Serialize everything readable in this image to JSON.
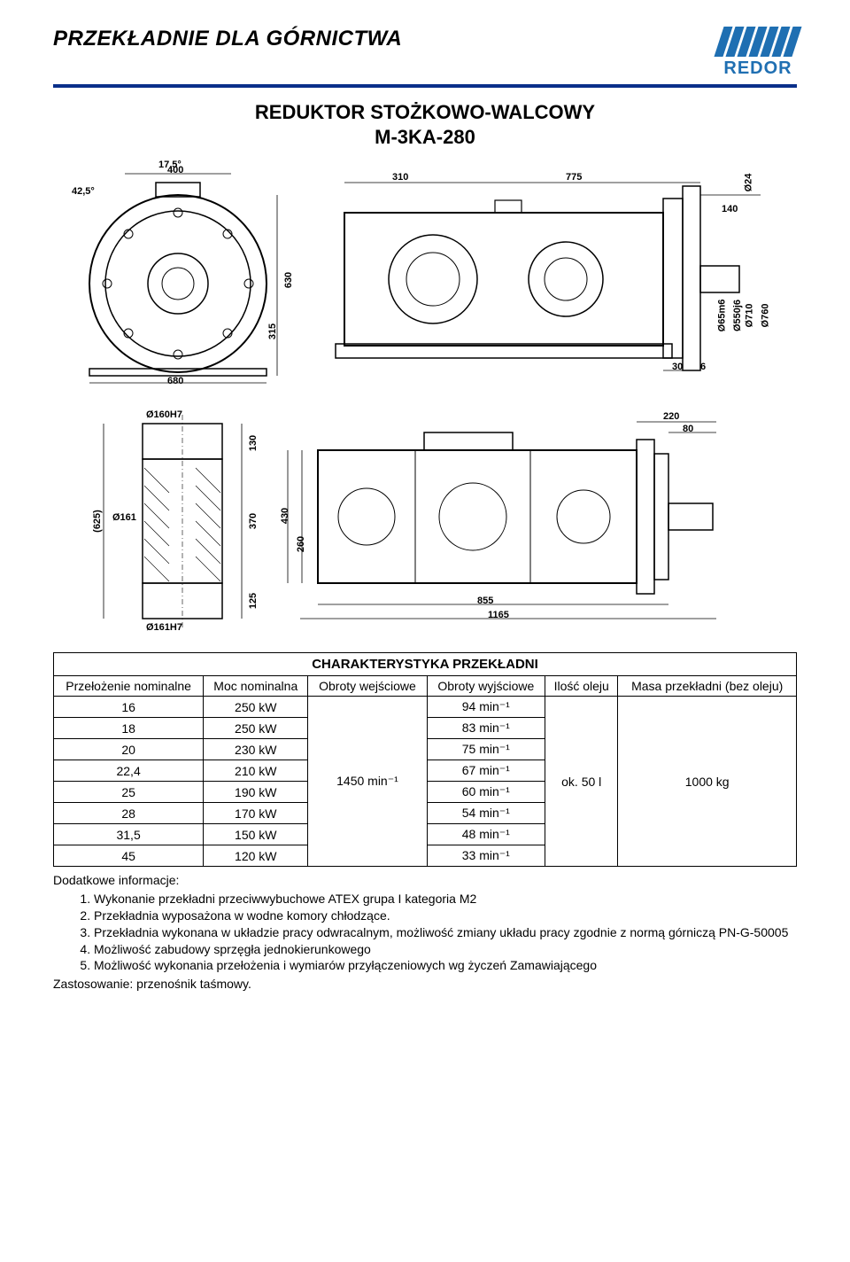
{
  "header": {
    "page_title": "PRZEKŁADNIE DLA GÓRNICTWA",
    "logo_text": "REDOR",
    "logo_color": "#1f6fb2",
    "hr_color": "#0a2f8a"
  },
  "product": {
    "title_line1": "REDUKTOR STOŻKOWO-WALCOWY",
    "title_line2": "M-3KA-280"
  },
  "drawings": {
    "top_front": {
      "dims": {
        "angle_top": "17,5°",
        "angle_left": "42,5°",
        "width": "400",
        "base": "680",
        "height": "630",
        "half_height": "315"
      }
    },
    "top_side": {
      "dims": {
        "seg1": "310",
        "seg2": "775",
        "shaft_d": "Ø24",
        "flange_h": "140",
        "d1": "Ø65m6",
        "d2": "Ø550j6",
        "d3": "Ø710",
        "d4": "Ø760",
        "gap": "30",
        "thk": "6"
      }
    },
    "bottom_left": {
      "dims": {
        "d_top": "Ø160H7",
        "d_mid": "Ø161",
        "d_bot": "Ø161H7",
        "overall": "(625)",
        "h1": "130",
        "h2": "370",
        "h3": "125"
      }
    },
    "bottom_right": {
      "dims": {
        "w_top": "220",
        "w_flange": "80",
        "h1": "430",
        "h2": "260",
        "len1": "855",
        "len2": "1165"
      }
    }
  },
  "table": {
    "caption": "CHARAKTERYSTYKA PRZEKŁADNI",
    "columns": [
      "Przełożenie nominalne",
      "Moc nominalna",
      "Obroty wejściowe",
      "Obroty wyjściowe",
      "Ilość oleju",
      "Masa przekładni (bez oleju)"
    ],
    "input_speed": "1450 min⁻¹",
    "oil": "ok. 50 l",
    "mass": "1000 kg",
    "rows": [
      {
        "ratio": "16",
        "power": "250 kW",
        "out": "94 min⁻¹"
      },
      {
        "ratio": "18",
        "power": "250 kW",
        "out": "83 min⁻¹"
      },
      {
        "ratio": "20",
        "power": "230 kW",
        "out": "75 min⁻¹"
      },
      {
        "ratio": "22,4",
        "power": "210 kW",
        "out": "67 min⁻¹"
      },
      {
        "ratio": "25",
        "power": "190 kW",
        "out": "60 min⁻¹"
      },
      {
        "ratio": "28",
        "power": "170 kW",
        "out": "54 min⁻¹"
      },
      {
        "ratio": "31,5",
        "power": "150 kW",
        "out": "48 min⁻¹"
      },
      {
        "ratio": "45",
        "power": "120 kW",
        "out": "33 min⁻¹"
      }
    ]
  },
  "info": {
    "heading": "Dodatkowe informacje:",
    "items": [
      "Wykonanie przekładni przeciwwybuchowe ATEX grupa I kategoria M2",
      "Przekładnia wyposażona w wodne komory chłodzące.",
      "Przekładnia wykonana w układzie pracy odwracalnym, możliwość zmiany układu pracy zgodnie z normą górniczą PN-G-50005",
      "Możliwość zabudowy sprzęgła jednokierunkowego",
      "Możliwość wykonania przełożenia i wymiarów przyłączeniowych wg życzeń Zamawiającego"
    ],
    "application_label": "Zastosowanie:",
    "application_value": "przenośnik taśmowy."
  }
}
